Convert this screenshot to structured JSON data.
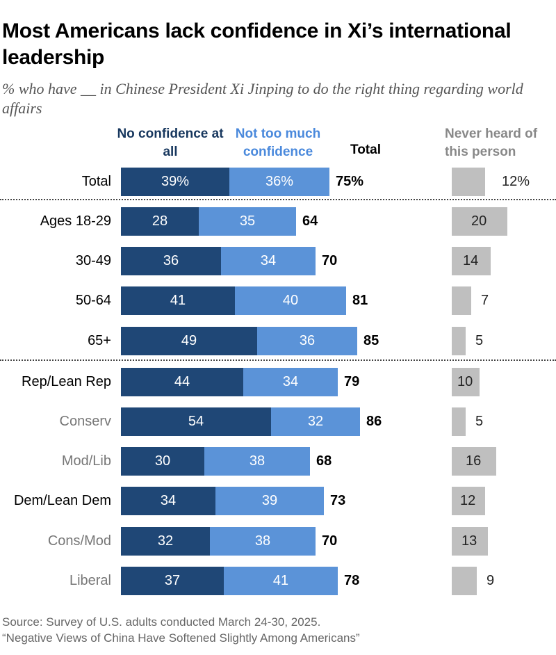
{
  "title": "Most Americans lack confidence in Xi’s international leadership",
  "subtitle": "% who have __ in Chinese President Xi Jinping to do the right thing regarding world affairs",
  "headers": {
    "no_confidence": "No confidence at all",
    "not_too_much": "Not too much confidence",
    "total": "Total",
    "never_heard": "Never heard of this person"
  },
  "colors": {
    "no_confidence": "#1f4776",
    "not_too_much": "#5b93d8",
    "never_heard": "#bfbfbf",
    "sublabel": "#777777"
  },
  "chart_data": {
    "type": "bar",
    "orientation": "horizontal",
    "stacked": true,
    "categories": [
      "Total",
      "Ages 18-29",
      "30-49",
      "50-64",
      "65+",
      "Rep/Lean Rep",
      "Conserv",
      "Mod/Lib",
      "Dem/Lean Dem",
      "Cons/Mod",
      "Liberal"
    ],
    "category_style": [
      "main",
      "main",
      "main",
      "main",
      "main",
      "main",
      "sub",
      "sub",
      "main",
      "sub",
      "sub"
    ],
    "series": [
      {
        "name": "No confidence at all",
        "values": [
          39,
          28,
          36,
          41,
          49,
          44,
          54,
          30,
          34,
          32,
          37
        ]
      },
      {
        "name": "Not too much confidence",
        "values": [
          36,
          35,
          34,
          40,
          36,
          34,
          32,
          38,
          39,
          38,
          41
        ]
      }
    ],
    "totals": [
      75,
      64,
      70,
      81,
      85,
      79,
      86,
      68,
      73,
      70,
      78
    ],
    "never_heard": [
      12,
      20,
      14,
      7,
      5,
      10,
      5,
      16,
      12,
      13,
      9
    ],
    "first_row_percent_sign": true,
    "xlim": [
      0,
      100
    ]
  },
  "source": "Source: Survey of U.S. adults conducted March 24-30, 2025.",
  "report": "“Negative Views of China Have Softened Slightly Among Americans”"
}
